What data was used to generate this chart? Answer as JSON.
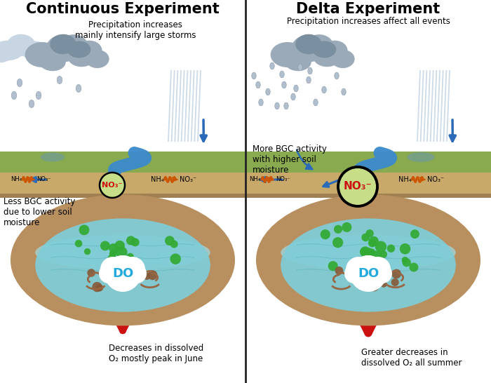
{
  "title_left": "Continuous Experiment",
  "title_right": "Delta Experiment",
  "subtitle_left": "Precipitation increases\nmainly intensify large storms",
  "subtitle_right": "Precipitation increases affect all events",
  "label_left_bgc": "Less BGC activity\ndue to lower soil\nmoisture",
  "label_right_bgc": "More BGC activity\nwith higher soil\nmoisture",
  "label_left_do": "Decreases in dissolved\nO₂ mostly peak in June",
  "label_right_do": "Greater decreases in\ndissolved O₂ all summer",
  "bg_color": "#ffffff",
  "soil_green_color": "#8aaa50",
  "soil_brown_color": "#c8a96a",
  "soil_dark_brown": "#b89060",
  "water_color": "#7ecdd8",
  "water_upper": "#a0dde8",
  "river_color": "#3a8acc",
  "cloud_light": "#c8d5e2",
  "cloud_mid": "#9aaab8",
  "cloud_dark": "#7a8fa0",
  "rain_drop_color": "#b0bece",
  "rain_streak_color": "#c5d5e5",
  "arrow_blue": "#2a6ab8",
  "arrow_red": "#cc1111",
  "green_dot": "#33aa33",
  "brown_dot": "#885533",
  "brown_spiral": "#996644",
  "no3_fill": "#c8dd88",
  "no3_text": "#cc1111",
  "do_fill": "#ffffff",
  "do_text": "#22aadd",
  "divider_color": "#222222",
  "text_color": "#111111",
  "puddle_color": "#6699aa",
  "nh4_color": "#111111",
  "wavy_color": "#cc5500"
}
